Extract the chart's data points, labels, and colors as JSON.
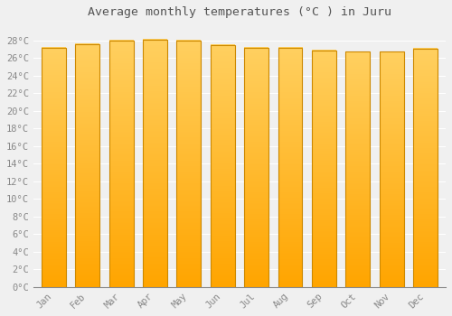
{
  "title": "Average monthly temperatures (°C ) in Juru",
  "months": [
    "Jan",
    "Feb",
    "Mar",
    "Apr",
    "May",
    "Jun",
    "Jul",
    "Aug",
    "Sep",
    "Oct",
    "Nov",
    "Dec"
  ],
  "values": [
    27.2,
    27.6,
    28.0,
    28.1,
    28.0,
    27.5,
    27.2,
    27.2,
    26.9,
    26.7,
    26.7,
    27.1
  ],
  "ylim": [
    0,
    30
  ],
  "yticks": [
    0,
    2,
    4,
    6,
    8,
    10,
    12,
    14,
    16,
    18,
    20,
    22,
    24,
    26,
    28
  ],
  "bar_color_top": "#FFD060",
  "bar_color_bottom": "#FFA500",
  "bar_edge_color": "#CC8800",
  "background_color": "#F0F0F0",
  "grid_color": "#FFFFFF",
  "title_fontsize": 9.5,
  "tick_fontsize": 7.5,
  "font_family": "monospace"
}
